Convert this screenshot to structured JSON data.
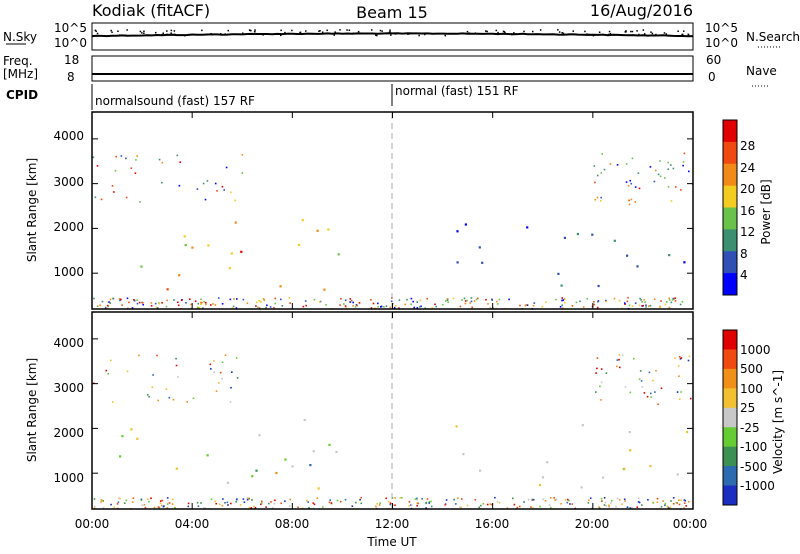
{
  "header": {
    "station": "Kodiak (fitACF)",
    "beam": "Beam 15",
    "date": "16/Aug/2016"
  },
  "top_panels": {
    "nsky_label": "N.Sky",
    "nsky_ticks": [
      "10^5",
      "10^0"
    ],
    "nsearch_label": "N.Search",
    "nsearch_ticks": [
      "10^5",
      "10^0"
    ],
    "freq_label": "Freq.",
    "freq_unit": "[MHz]",
    "freq_ticks": [
      "18",
      "8"
    ],
    "nave_label": "Nave",
    "nave_ticks": [
      "60",
      "0"
    ],
    "cpid_label": "CPID",
    "cpid_segments": [
      {
        "label": "normalsound (fast) 157 RF",
        "start_hour": 0
      },
      {
        "label": "normal (fast) 151 RF",
        "start_hour": 12
      }
    ]
  },
  "chart_data": [
    {
      "type": "heatmap",
      "title": "",
      "ylabel": "Slant Range [km]",
      "xlabel": "",
      "ylim": [
        200,
        4600
      ],
      "yticks": [
        "4000",
        "3000",
        "2000",
        "1000"
      ],
      "xlim_hours": [
        0,
        24
      ],
      "colorbar": {
        "label": "Power [dB]",
        "ticks": [
          "28",
          "24",
          "20",
          "16",
          "12",
          "8",
          "4"
        ],
        "colors": [
          "#0000ff",
          "#3050b8",
          "#3d8f72",
          "#69c24a",
          "#f2cc1f",
          "#f28a18",
          "#f04a10",
          "#e00000"
        ]
      },
      "scatter_regions": [
        {
          "t0": 0.0,
          "t1": 10.2,
          "r0": 1100,
          "r1": 2250,
          "level": 4
        },
        {
          "t0": 2.5,
          "t1": 9.5,
          "r0": 600,
          "r1": 1050,
          "level": 5
        },
        {
          "t0": 5.5,
          "t1": 8.0,
          "r0": 1500,
          "r1": 1800,
          "level": 7
        },
        {
          "t0": 14.5,
          "t1": 24.0,
          "r0": 700,
          "r1": 2200,
          "level": 1
        },
        {
          "t0": 22.5,
          "t1": 24.0,
          "r0": 1400,
          "r1": 1800,
          "level": 3
        }
      ]
    },
    {
      "type": "heatmap",
      "title": "",
      "ylabel": "Slant Range [km]",
      "xlabel": "Time UT",
      "ylim": [
        200,
        4600
      ],
      "yticks": [
        "4000",
        "3000",
        "2000",
        "1000"
      ],
      "xlim_hours": [
        0,
        24
      ],
      "xticks": [
        "00:00",
        "04:00",
        "08:00",
        "12:00",
        "16:00",
        "20:00",
        "00:00"
      ],
      "colorbar": {
        "label": "Velocity [m s^-1]",
        "ticks": [
          "1000",
          "500",
          "100",
          "25",
          "-25",
          "-100",
          "-500",
          "-1000"
        ],
        "colors": [
          "#1a2fbf",
          "#2c6bb0",
          "#3d8f52",
          "#66cc33",
          "#c8c8c8",
          "#f2c030",
          "#f09018",
          "#f04a10",
          "#e00000"
        ]
      },
      "scatter_regions": [
        {
          "t0": 0.0,
          "t1": 10.2,
          "r0": 1100,
          "r1": 2250,
          "level": 4
        },
        {
          "t0": 2.5,
          "t1": 6.5,
          "r0": 600,
          "r1": 1050,
          "level": 4
        },
        {
          "t0": 6.5,
          "t1": 9.5,
          "r0": 600,
          "r1": 1050,
          "level": 6
        },
        {
          "t0": 6.5,
          "t1": 9.5,
          "r0": 1000,
          "r1": 1600,
          "level": 2
        },
        {
          "t0": 14.5,
          "t1": 24.0,
          "r0": 700,
          "r1": 2200,
          "level": 4
        }
      ]
    }
  ]
}
